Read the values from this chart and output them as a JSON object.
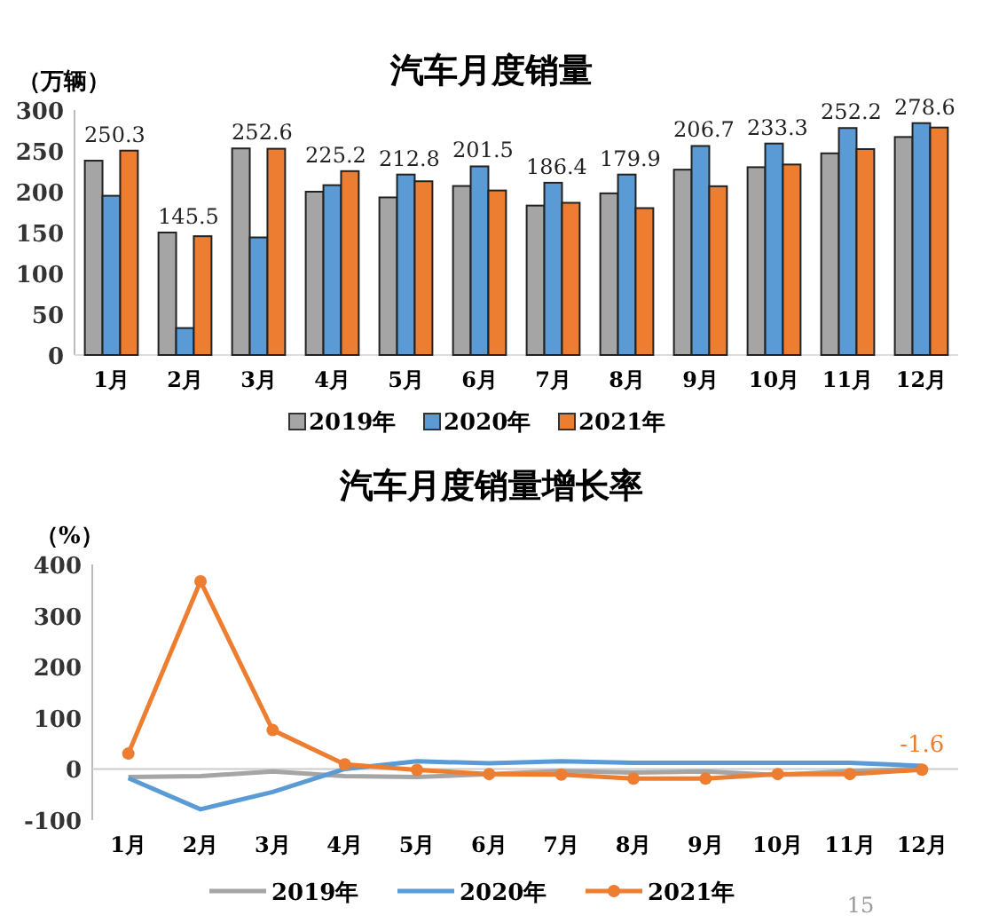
{
  "chart_data": [
    {
      "type": "bar",
      "title": "汽车月度销量",
      "ylabel": "（万辆）",
      "categories": [
        "1月",
        "2月",
        "3月",
        "4月",
        "5月",
        "6月",
        "7月",
        "8月",
        "9月",
        "10月",
        "11月",
        "12月"
      ],
      "ylim": [
        0,
        300
      ],
      "yticks": [
        0,
        50,
        100,
        150,
        200,
        250,
        300
      ],
      "grid": false,
      "legend": "bottom",
      "series": [
        {
          "name": "2019年",
          "color": "#a5a5a5",
          "values": [
            238,
            150,
            253,
            200,
            193,
            207,
            183,
            198,
            227,
            230,
            247,
            267
          ]
        },
        {
          "name": "2020年",
          "color": "#5b9bd5",
          "values": [
            195,
            33,
            144,
            208,
            221,
            231,
            211,
            221,
            256,
            259,
            278,
            284
          ]
        },
        {
          "name": "2021年",
          "color": "#ed7d31",
          "values": [
            250.3,
            145.5,
            252.6,
            225.2,
            212.8,
            201.5,
            186.4,
            179.9,
            206.7,
            233.3,
            252.2,
            278.6
          ],
          "value_labels": [
            "250.3",
            "145.5",
            "252.6",
            "225.2",
            "212.8",
            "201.5",
            "186.4",
            "179.9",
            "206.7",
            "233.3",
            "252.2",
            "278.6"
          ]
        }
      ]
    },
    {
      "type": "line",
      "title": "汽车月度销量增长率",
      "ylabel": "（%）",
      "categories": [
        "1月",
        "2月",
        "3月",
        "4月",
        "5月",
        "6月",
        "7月",
        "8月",
        "9月",
        "10月",
        "11月",
        "12月"
      ],
      "ylim": [
        -100,
        400
      ],
      "yticks": [
        -100,
        0,
        100,
        200,
        300,
        400
      ],
      "grid": false,
      "legend": "bottom",
      "annotations": [
        "15"
      ],
      "ref_lines": [
        {
          "axis": "y",
          "value": 0,
          "color": "#cccccc"
        }
      ],
      "series": [
        {
          "name": "2019年",
          "color": "#a5a5a5",
          "marker": "none",
          "values": [
            -16,
            -14,
            -5,
            -14,
            -16,
            -10,
            -4,
            -7,
            -5,
            -12,
            -4,
            0
          ]
        },
        {
          "name": "2020年",
          "color": "#5b9bd5",
          "marker": "none",
          "values": [
            -18,
            -79,
            -45,
            0,
            15,
            11,
            15,
            12,
            12,
            12,
            12,
            6
          ]
        },
        {
          "name": "2021年",
          "color": "#ed7d31",
          "marker": "circle",
          "values": [
            30,
            367,
            76,
            9,
            -2,
            -10,
            -11,
            -19,
            -19,
            -10,
            -10,
            -1.6
          ],
          "value_labels": [
            null,
            null,
            null,
            null,
            null,
            null,
            null,
            null,
            null,
            null,
            null,
            "-1.6"
          ]
        }
      ]
    }
  ]
}
